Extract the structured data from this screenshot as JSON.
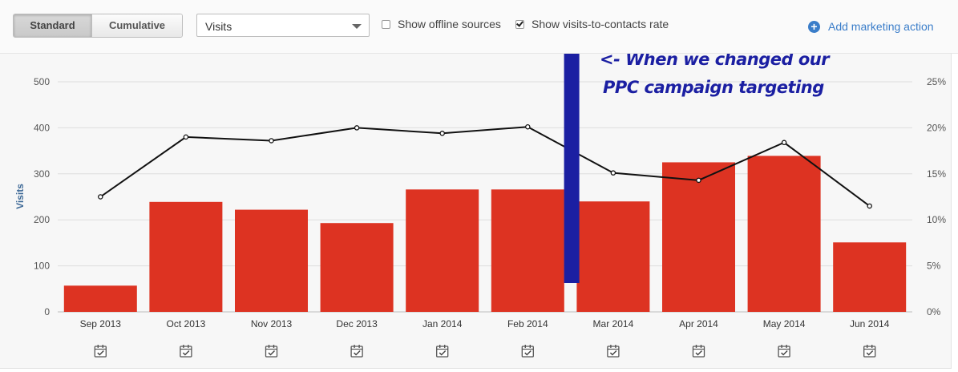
{
  "toolbar": {
    "mode_buttons": [
      "Standard",
      "Cumulative"
    ],
    "active_mode": "Standard",
    "metric_select": "Visits",
    "offline_label": "Show offline sources",
    "offline_checked": false,
    "rate_label": "Show visits-to-contacts rate",
    "rate_checked": true,
    "add_action_label": "Add marketing action"
  },
  "colors": {
    "bar": "#dd3322",
    "line": "#111111",
    "annotation": "#1b1fa2",
    "accent": "#3a7dc9"
  },
  "chart_data": {
    "type": "bar",
    "categories": [
      "Sep 2013",
      "Oct 2013",
      "Nov 2013",
      "Dec 2013",
      "Jan 2014",
      "Feb 2014",
      "Mar 2014",
      "Apr 2014",
      "May 2014",
      "Jun 2014"
    ],
    "series": [
      {
        "values": [
          57,
          239,
          222,
          193,
          266,
          266,
          240,
          325,
          339,
          151
        ]
      },
      {
        "values": [
          12.5,
          19.0,
          18.6,
          20.0,
          19.4,
          20.1,
          15.1,
          14.3,
          18.4,
          11.5
        ]
      }
    ],
    "ylabel": "Visits",
    "ylim": [
      0,
      500
    ],
    "yticks": [
      0,
      100,
      200,
      300,
      400,
      500
    ],
    "y2lim": [
      0,
      25
    ],
    "y2ticks": [
      "0%",
      "5%",
      "10%",
      "15%",
      "20%",
      "25%"
    ],
    "grid": true,
    "annotation": {
      "text_lines": [
        "<- When we changed our",
        "PPC campaign targeting"
      ],
      "between": [
        "Feb 2014",
        "Mar 2014"
      ]
    }
  }
}
